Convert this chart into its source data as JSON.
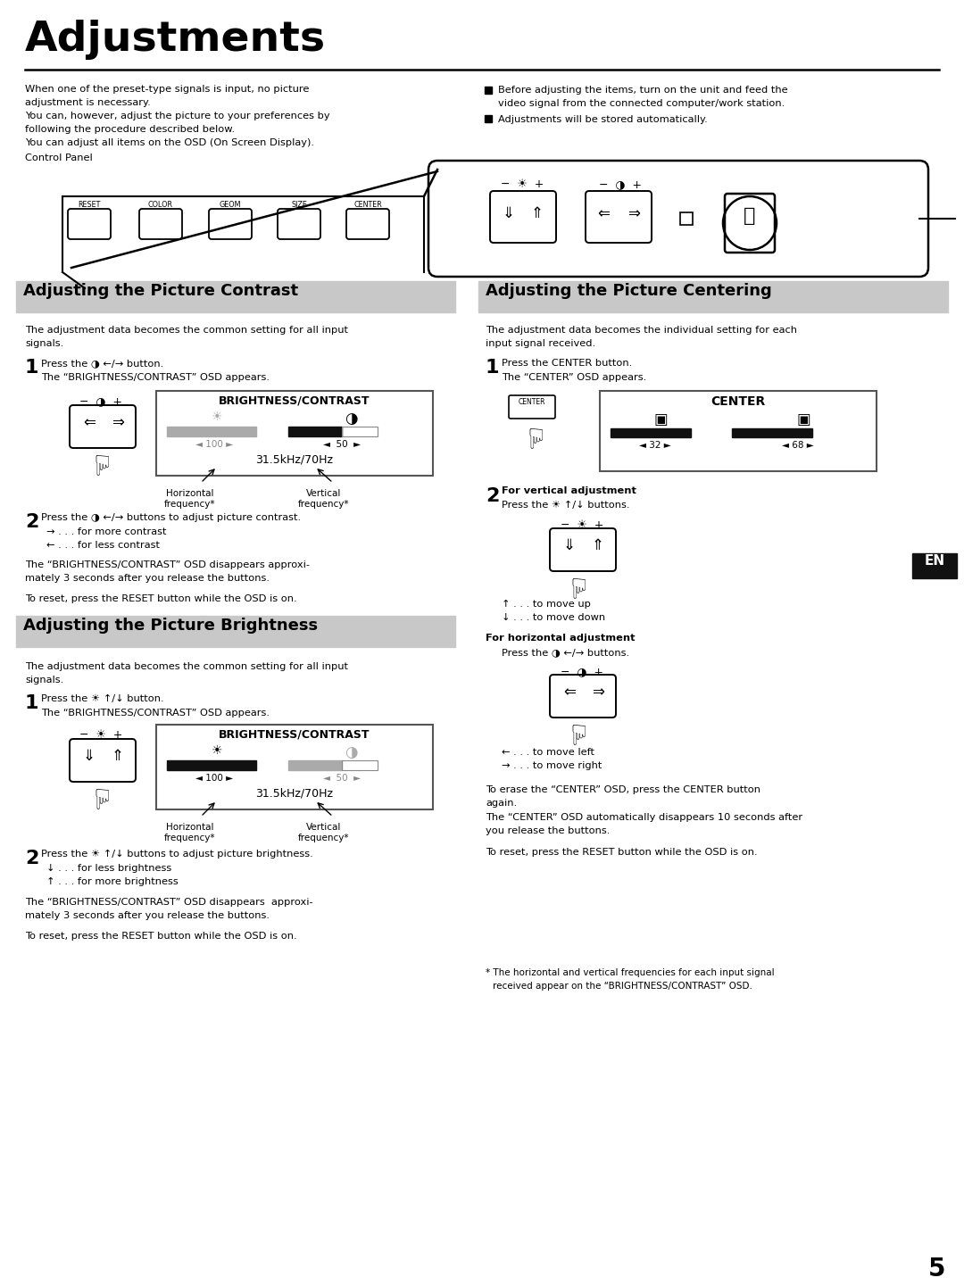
{
  "title": "Adjustments",
  "bg_color": "#ffffff",
  "page_number": "5",
  "section_header_bg": "#c8c8c8",
  "intro_left": [
    "When one of the preset-type signals is input, no picture",
    "adjustment is necessary.",
    "You can, however, adjust the picture to your preferences by",
    "following the procedure described below.",
    "You can adjust all items on the OSD (On Screen Display)."
  ],
  "intro_right_line1": "Before adjusting the items, turn on the unit and feed the",
  "intro_right_line2": "video signal from the connected computer/work station.",
  "intro_right_line3": "Adjustments will be stored automatically.",
  "section1_title": "Adjusting the Picture Contrast",
  "section2_title": "Adjusting the Picture Centering",
  "section3_title": "Adjusting the Picture Brightness"
}
